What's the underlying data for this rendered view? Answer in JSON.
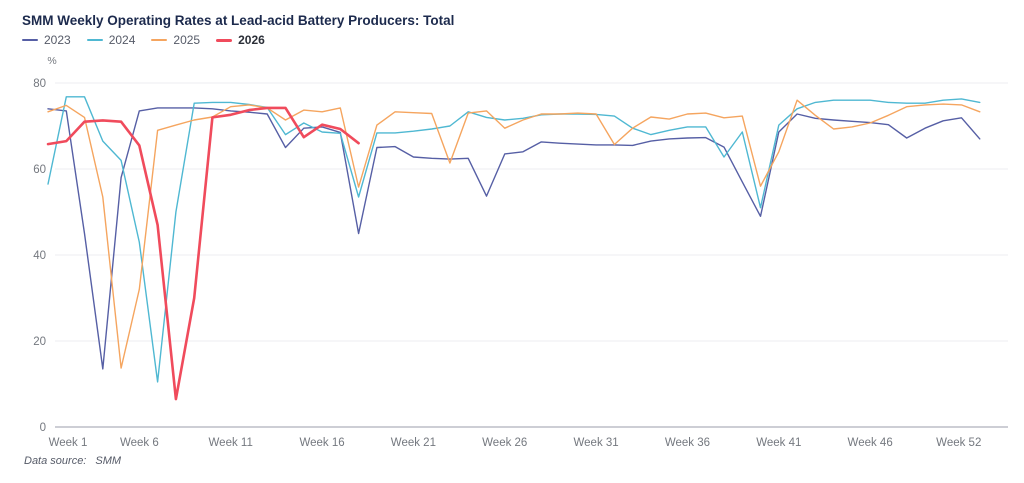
{
  "title": "SMM Weekly Operating Rates at Lead-acid Battery Producers: Total",
  "footer": {
    "label": "Data source:",
    "value": "SMM"
  },
  "colors": {
    "title_text": "#1c2a4d",
    "grid_line": "#ededf2",
    "axis_line": "#9b9eab",
    "tick_text": "#74787f",
    "background": "#ffffff"
  },
  "chart_data": {
    "type": "line",
    "title": "SMM Weekly Operating Rates at Lead-acid Battery Producers: Total",
    "ylabel": "%",
    "ylim": [
      0,
      80
    ],
    "y_ticks": [
      0,
      20,
      40,
      60,
      80
    ],
    "x_tick_weeks": [
      1,
      6,
      11,
      16,
      21,
      26,
      31,
      36,
      41,
      46,
      52
    ],
    "x_tick_labels": [
      "Week 1",
      "Week 6",
      "Week 11",
      "Week 16",
      "Week 21",
      "Week 26",
      "Week 31",
      "Week 36",
      "Week 41",
      "Week 46",
      "Week 52"
    ],
    "weeks_total": 52,
    "grid": true,
    "legend_position": "top-left",
    "series": [
      {
        "name": "2023",
        "color": "#565fa5",
        "bold": false,
        "line_width": 1.4,
        "values": [
          74,
          73.5,
          45,
          13.5,
          58,
          73.5,
          74.2,
          74.2,
          74.2,
          74,
          73.5,
          73.2,
          72.8,
          65,
          69.5,
          69.8,
          68.5,
          45,
          65,
          65.2,
          62.8,
          62.5,
          62.3,
          62.5,
          53.7,
          63.5,
          64,
          66.3,
          66,
          65.8,
          65.6,
          65.6,
          65.5,
          66.5,
          67,
          67.2,
          67.3,
          65.1,
          57,
          49,
          68.6,
          72.8,
          71.8,
          71.4,
          71.1,
          70.8,
          70.3,
          67.2,
          69.5,
          71.2,
          71.9,
          67
        ]
      },
      {
        "name": "2024",
        "color": "#4fb8d2",
        "bold": false,
        "line_width": 1.4,
        "values": [
          56.5,
          76.8,
          76.8,
          66.5,
          62,
          43,
          10.5,
          50,
          75.3,
          75.5,
          75.5,
          75,
          74.3,
          68,
          70.7,
          68.6,
          68.3,
          53.5,
          68.4,
          68.4,
          68.8,
          69.3,
          70,
          73.3,
          72,
          71.4,
          71.8,
          72.6,
          72.8,
          72.8,
          72.7,
          72.3,
          69.5,
          68,
          69,
          69.8,
          69.8,
          62.8,
          68.6,
          51,
          70.2,
          74,
          75.5,
          76,
          76,
          76,
          75.5,
          75.3,
          75.3,
          76,
          76.3,
          75.5
        ]
      },
      {
        "name": "2025",
        "color": "#f5a55f",
        "bold": false,
        "line_width": 1.4,
        "values": [
          73.3,
          74.8,
          72,
          53.5,
          13.7,
          32,
          69,
          70.2,
          71.4,
          72.1,
          74.5,
          74.9,
          74.2,
          71.4,
          73.7,
          73.3,
          74.2,
          55.8,
          70.2,
          73.3,
          73.1,
          72.9,
          61.4,
          73,
          73.5,
          69.5,
          71.4,
          72.8,
          72.8,
          73,
          72.8,
          65.7,
          69.5,
          72.1,
          71.6,
          72.8,
          73,
          71.9,
          72.3,
          56,
          64,
          76,
          72.5,
          69.3,
          69.8,
          70.7,
          72.5,
          74.5,
          74.9,
          75.1,
          74.9,
          73.3
        ]
      },
      {
        "name": "2026",
        "color": "#f04b5c",
        "bold": true,
        "line_width": 2.6,
        "values": [
          65.8,
          66.5,
          71,
          71.3,
          71,
          65.5,
          47,
          6.5,
          30,
          72,
          72.6,
          73.7,
          74.2,
          74.2,
          67.4,
          70.3,
          69.3,
          66
        ]
      }
    ]
  }
}
